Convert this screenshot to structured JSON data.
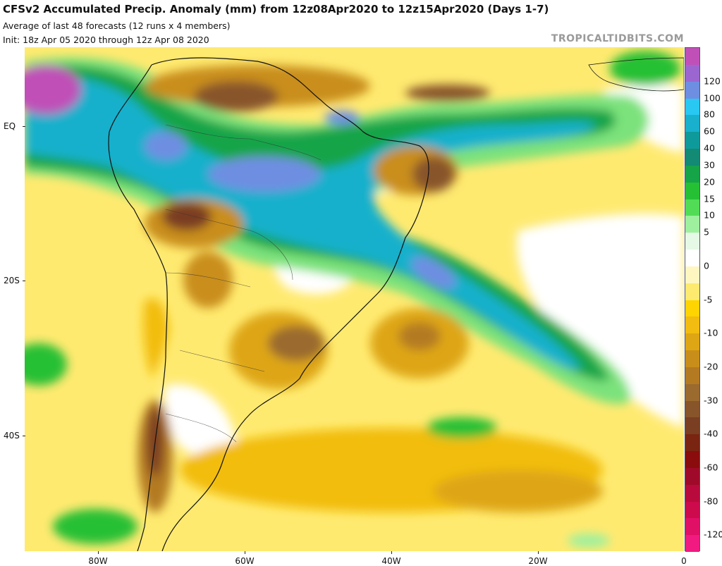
{
  "header": {
    "title": "CFSv2 Accumulated Precip. Anomaly (mm) from 12z08Apr2020 to 12z15Apr2020 (Days 1-7)",
    "subtitle": "Average of last 48 forecasts (12 runs x 4 members)",
    "init": "Init: 18z Apr 05 2020 through 12z Apr 08 2020",
    "brand": "TROPICALTIDBITS.COM"
  },
  "map": {
    "region": "South America and South Atlantic",
    "lon_range": [
      -90,
      0
    ],
    "lat_range": [
      12,
      -53
    ],
    "lat_labels": [
      "EQ",
      "20S",
      "40S"
    ],
    "lon_labels": [
      "80W",
      "60W",
      "40W",
      "20W",
      "0"
    ],
    "features": [
      {
        "name": "wet-band-itcz",
        "anomaly": "positive",
        "max_mm": 100
      },
      {
        "name": "wet-band-sacz",
        "anomaly": "positive",
        "max_mm": 100
      },
      {
        "name": "wet-pacific-northwest",
        "anomaly": "positive",
        "max_mm": 140
      },
      {
        "name": "dry-northeast-brazil",
        "anomaly": "negative",
        "max_mm": -60
      },
      {
        "name": "dry-bolivia",
        "anomaly": "negative",
        "max_mm": -50
      },
      {
        "name": "dry-southern-brazil",
        "anomaly": "negative",
        "max_mm": -40
      },
      {
        "name": "dry-south-atlantic",
        "anomaly": "negative",
        "max_mm": -30
      },
      {
        "name": "dry-southern-chile",
        "anomaly": "negative",
        "max_mm": -50
      }
    ]
  },
  "colorbar": {
    "levels": [
      {
        "label": "",
        "color": "#c050b8"
      },
      {
        "label": "120",
        "color": "#9c66d0"
      },
      {
        "label": "100",
        "color": "#6e8ee2"
      },
      {
        "label": "80",
        "color": "#28c8f2"
      },
      {
        "label": "60",
        "color": "#18b0cc"
      },
      {
        "label": "40",
        "color": "#0e9a9a"
      },
      {
        "label": "30",
        "color": "#128a74"
      },
      {
        "label": "20",
        "color": "#16a448"
      },
      {
        "label": "15",
        "color": "#26c034"
      },
      {
        "label": "10",
        "color": "#52dc56"
      },
      {
        "label": "5",
        "color": "#9ef09e"
      },
      {
        "label": "",
        "color": "#e6f8e6"
      },
      {
        "label": "0",
        "color": "#ffffff"
      },
      {
        "label": "",
        "color": "#fff6c0"
      },
      {
        "label": "-5",
        "color": "#ffea70"
      },
      {
        "label": "",
        "color": "#ffd400"
      },
      {
        "label": "-10",
        "color": "#f2bd10"
      },
      {
        "label": "",
        "color": "#dea614"
      },
      {
        "label": "-20",
        "color": "#c98e1a"
      },
      {
        "label": "",
        "color": "#b47a22"
      },
      {
        "label": "-30",
        "color": "#9a6a2e"
      },
      {
        "label": "",
        "color": "#88542a"
      },
      {
        "label": "-40",
        "color": "#7a3e22"
      },
      {
        "label": "",
        "color": "#7a2412"
      },
      {
        "label": "-60",
        "color": "#8a0c0c"
      },
      {
        "label": "",
        "color": "#a00a2a"
      },
      {
        "label": "-80",
        "color": "#b80a3c"
      },
      {
        "label": "",
        "color": "#cc0a4c"
      },
      {
        "label": "-120",
        "color": "#e01066"
      },
      {
        "label": "",
        "color": "#f01a80"
      }
    ]
  }
}
